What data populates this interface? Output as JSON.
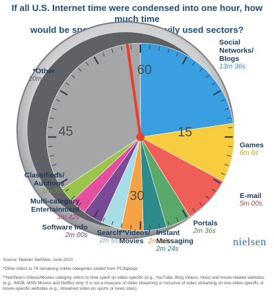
{
  "title_lines": [
    "If all U.S. Internet time were condensed into one hour, how much time",
    "would be spent in the most heavily used sectors?"
  ],
  "chart_data": {
    "type": "pie",
    "title": "If all U.S. Internet time were condensed into one hour, how much time would be spent in the most heavily used sectors?",
    "unit": "minutes of 60",
    "series": [
      {
        "name": "Social Networks/ Blogs",
        "value_label": "13m 36s",
        "minutes": 13.6,
        "color": "#3a9fe0",
        "value_color": "#3a86c8"
      },
      {
        "name": "Games",
        "value_label": "6m 6s",
        "minutes": 6.1,
        "color": "#f7cd3f",
        "value_color": "#c99a0a"
      },
      {
        "name": "E-mail",
        "value_label": "5m 00s",
        "minutes": 5.0,
        "color": "#ef5f58",
        "value_color": "#c0392b"
      },
      {
        "name": "Portals",
        "value_label": "2m 36s",
        "minutes": 2.6,
        "color": "#5aa86a",
        "value_color": "#3c8a4c"
      },
      {
        "name": "Instant Messaging",
        "value_label": "2m 24s",
        "minutes": 2.4,
        "color": "#2e8b8b",
        "value_color": "#27787a"
      },
      {
        "name": "**Videos/ Movies",
        "value_label": "2m 18s",
        "minutes": 2.3,
        "color": "#f5a244",
        "value_color": "#d9822b"
      },
      {
        "name": "Search",
        "value_label": "2m 6s",
        "minutes": 2.1,
        "color": "#a8dde6",
        "value_color": "#6aa7b6"
      },
      {
        "name": "Software Info",
        "value_label": "2m 00s",
        "minutes": 2.0,
        "color": "#7b4a97",
        "value_color": "#6b3d87"
      },
      {
        "name": "Multi-category Entertainment",
        "value_label": "1m 42s",
        "minutes": 1.7,
        "color": "#e4509b",
        "value_color": "#c33b80"
      },
      {
        "name": "Classifieds/ Auctions",
        "value_label": "1m 36s",
        "minutes": 1.6,
        "color": "#9bc54a",
        "value_color": "#6e9a26"
      },
      {
        "name": "*Other",
        "value_label": "20m 36s",
        "minutes": 20.6,
        "color": "#a5a6a8",
        "value_color": "#666666"
      }
    ],
    "dial_numbers": [
      "60",
      "15",
      "30",
      "45"
    ],
    "legend": "none"
  },
  "labels": {
    "social": {
      "name_lines": [
        "Social",
        "Networks/",
        "Blogs"
      ],
      "value": "13m 36s"
    },
    "games": {
      "name_lines": [
        "Games"
      ],
      "value": "6m 6s"
    },
    "email": {
      "name_lines": [
        "E-mail"
      ],
      "value": "5m 00s"
    },
    "portals": {
      "name_lines": [
        "Portals"
      ],
      "value": "2m 36s"
    },
    "im": {
      "name_lines": [
        "Instant",
        "Messaging"
      ],
      "value": "2m 24s"
    },
    "videos": {
      "name_lines": [
        "**Videos/",
        "Movies"
      ],
      "value": "2m 18s"
    },
    "search": {
      "name_lines": [
        "Search"
      ],
      "value": "2m 6s"
    },
    "software": {
      "name_lines": [
        "Software Info"
      ],
      "value": "2m 00s"
    },
    "multi": {
      "name_lines": [
        "Multi-category",
        "Entertainment"
      ],
      "value": "1m 42s"
    },
    "classifieds": {
      "name_lines": [
        "Classifieds/",
        "Auctions"
      ],
      "value": "1m 36s"
    },
    "other": {
      "name_lines": [
        "*Other"
      ],
      "value": "20m 36s"
    }
  },
  "brand": "nielsen",
  "footnotes": {
    "source": "Source: Nielsen NetView, June 2010",
    "other": "*Other refers to 74 remaining online categories visited from PC/laptops",
    "videos": "**NetView's Videos/Movies category refers to time spent on video-specific (e.g., YouTube, Bing Videos, Hulu) and movie-related websites (e.g., IMDB, MSN Movies and Netflix) only. It is not a measure of video streaming or inclusive of video streaming on non-video-specific or movie-specific websites (e.g., streamed video on sports or news sites)."
  }
}
